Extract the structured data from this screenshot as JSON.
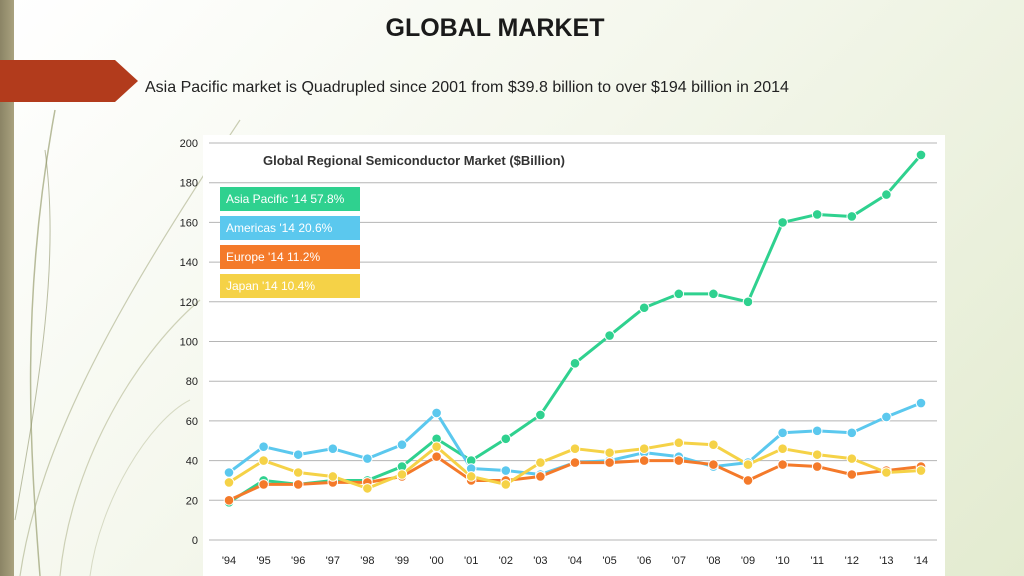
{
  "slide": {
    "title": "GLOBAL MARKET",
    "subtitle": "Asia Pacific market is Quadrupled since 2001 from $39.8 billion to over $194 billion in 2014"
  },
  "chart_data": {
    "type": "line",
    "title": "Global Regional Semiconductor Market ($Billion)",
    "xlabel": "",
    "ylabel": "",
    "categories": [
      "'94",
      "'95",
      "'96",
      "'97",
      "'98",
      "'99",
      "'00",
      "'01",
      "'02",
      "'03",
      "'04",
      "'05",
      "'06",
      "'07",
      "'08",
      "'09",
      "'10",
      "'11",
      "'12",
      "'13",
      "'14"
    ],
    "ylim": [
      0,
      200
    ],
    "yticks": [
      0,
      20,
      40,
      60,
      80,
      100,
      120,
      140,
      160,
      180,
      200
    ],
    "grid": true,
    "legend_position": "top-left",
    "series": [
      {
        "name": "Asia Pacific '14  57.8%",
        "color": "#2fd18f",
        "values": [
          19,
          30,
          28,
          30,
          30,
          37,
          51,
          40,
          51,
          63,
          89,
          103,
          117,
          124,
          124,
          120,
          160,
          164,
          163,
          174,
          194
        ]
      },
      {
        "name": "Americas '14  20.6%",
        "color": "#5bc8ee",
        "values": [
          34,
          47,
          43,
          46,
          41,
          48,
          64,
          36,
          35,
          33,
          39,
          40,
          44,
          42,
          37,
          39,
          54,
          55,
          54,
          62,
          69
        ]
      },
      {
        "name": "Europe '14  11.2%",
        "color": "#f47a2a",
        "values": [
          20,
          28,
          28,
          29,
          29,
          32,
          42,
          30,
          30,
          32,
          39,
          39,
          40,
          40,
          38,
          30,
          38,
          37,
          33,
          35,
          37
        ]
      },
      {
        "name": "Japan '14  10.4%",
        "color": "#f5d247",
        "values": [
          29,
          40,
          34,
          32,
          26,
          33,
          47,
          32,
          28,
          39,
          46,
          44,
          46,
          49,
          48,
          38,
          46,
          43,
          41,
          34,
          35
        ]
      }
    ]
  }
}
